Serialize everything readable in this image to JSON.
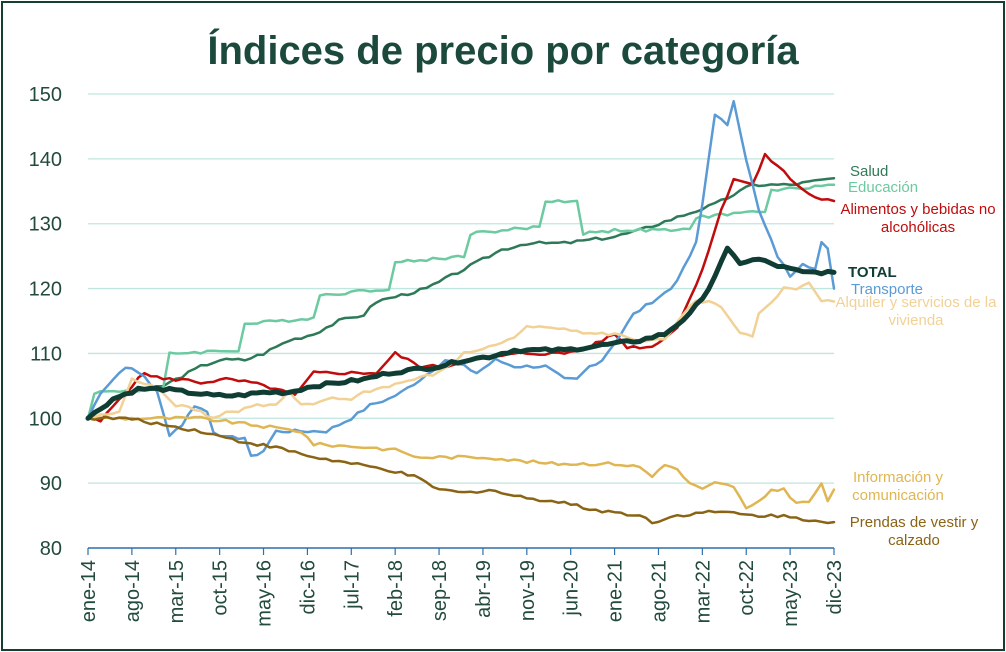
{
  "chart_data": {
    "type": "line",
    "title": "Índices de precio por categoría",
    "xlabel": "",
    "ylabel": "",
    "ylim": [
      80,
      150
    ],
    "yticks": [
      80,
      90,
      100,
      110,
      120,
      130,
      140,
      150
    ],
    "grid": true,
    "x_tick_labels": [
      "ene-14",
      "ago-14",
      "mar-15",
      "oct-15",
      "may-16",
      "dic-16",
      "jul-17",
      "feb-18",
      "sep-18",
      "abr-19",
      "nov-19",
      "jun-20",
      "ene-21",
      "ago-21",
      "mar-22",
      "oct-22",
      "may-23",
      "dic-23"
    ],
    "x_tick_index": [
      0,
      7,
      14,
      21,
      28,
      35,
      42,
      49,
      56,
      63,
      70,
      77,
      84,
      91,
      98,
      105,
      112,
      119
    ],
    "n_periods": 120,
    "series": [
      {
        "name": "Salud",
        "label_lines": [
          "Salud"
        ],
        "color": "#2e7a58",
        "width": 2.5,
        "knots": [
          [
            0,
            100
          ],
          [
            6,
            104
          ],
          [
            12,
            105
          ],
          [
            18,
            108
          ],
          [
            21,
            109
          ],
          [
            25,
            109
          ],
          [
            28,
            110
          ],
          [
            32,
            112
          ],
          [
            36,
            113
          ],
          [
            40,
            115
          ],
          [
            44,
            116
          ],
          [
            46,
            118
          ],
          [
            50,
            119
          ],
          [
            54,
            120
          ],
          [
            58,
            122
          ],
          [
            62,
            124
          ],
          [
            66,
            126
          ],
          [
            70,
            127
          ],
          [
            76,
            127
          ],
          [
            84,
            128
          ],
          [
            88,
            129
          ],
          [
            94,
            131
          ],
          [
            100,
            133
          ],
          [
            106,
            136
          ],
          [
            112,
            136
          ],
          [
            119,
            137
          ]
        ]
      },
      {
        "name": "Educación",
        "label_lines": [
          "Educación"
        ],
        "color": "#6ccaa0",
        "width": 2.5,
        "knots": [
          [
            0,
            100
          ],
          [
            1,
            104
          ],
          [
            12,
            104.5
          ],
          [
            13,
            110
          ],
          [
            24,
            110.5
          ],
          [
            25,
            114.5
          ],
          [
            36,
            115.5
          ],
          [
            37,
            119
          ],
          [
            48,
            120
          ],
          [
            49,
            124
          ],
          [
            60,
            125
          ],
          [
            61,
            128.5
          ],
          [
            72,
            129.5
          ],
          [
            73,
            133.5
          ],
          [
            78,
            133.5
          ],
          [
            79,
            128.5
          ],
          [
            84,
            129
          ],
          [
            96,
            129
          ],
          [
            97,
            131
          ],
          [
            108,
            132
          ],
          [
            109,
            135
          ],
          [
            113,
            135.5
          ],
          [
            119,
            136
          ]
        ]
      },
      {
        "name": "Alimentos y bebidas no alcohólicas",
        "label_lines": [
          "Alimentos y bebidas no",
          "alcohólicas"
        ],
        "color": "#c00c0c",
        "width": 2.5,
        "knots": [
          [
            0,
            100
          ],
          [
            2,
            99.5
          ],
          [
            5,
            103
          ],
          [
            9,
            107
          ],
          [
            12,
            106
          ],
          [
            15,
            106
          ],
          [
            18,
            105.5
          ],
          [
            22,
            106
          ],
          [
            26,
            105.5
          ],
          [
            30,
            104.5
          ],
          [
            33,
            103.5
          ],
          [
            36,
            107
          ],
          [
            40,
            107
          ],
          [
            43,
            107
          ],
          [
            46,
            107
          ],
          [
            49,
            110
          ],
          [
            53,
            108
          ],
          [
            57,
            108
          ],
          [
            61,
            109
          ],
          [
            65,
            109.5
          ],
          [
            69,
            110
          ],
          [
            73,
            110
          ],
          [
            76,
            110
          ],
          [
            80,
            111
          ],
          [
            84,
            113
          ],
          [
            86,
            111
          ],
          [
            90,
            111
          ],
          [
            94,
            114
          ],
          [
            98,
            123
          ],
          [
            101,
            132
          ],
          [
            103,
            137
          ],
          [
            106,
            136
          ],
          [
            108,
            140.5
          ],
          [
            110,
            139
          ],
          [
            113,
            136
          ],
          [
            116,
            134
          ],
          [
            119,
            133.5
          ]
        ]
      },
      {
        "name": "TOTAL",
        "label_lines": [
          "TOTAL"
        ],
        "color": "#0f3d33",
        "width": 5,
        "bold": true,
        "knots": [
          [
            0,
            100
          ],
          [
            4,
            103
          ],
          [
            8,
            104.5
          ],
          [
            12,
            104.5
          ],
          [
            16,
            104
          ],
          [
            20,
            103.5
          ],
          [
            24,
            103.5
          ],
          [
            28,
            104
          ],
          [
            32,
            104
          ],
          [
            36,
            105
          ],
          [
            40,
            105.5
          ],
          [
            44,
            106
          ],
          [
            48,
            107
          ],
          [
            52,
            107.5
          ],
          [
            56,
            108
          ],
          [
            60,
            109
          ],
          [
            64,
            109.5
          ],
          [
            68,
            110.5
          ],
          [
            72,
            110.5
          ],
          [
            76,
            110.5
          ],
          [
            80,
            111
          ],
          [
            84,
            111.5
          ],
          [
            88,
            112
          ],
          [
            92,
            113
          ],
          [
            96,
            116
          ],
          [
            99,
            120
          ],
          [
            102,
            126
          ],
          [
            104,
            124
          ],
          [
            107,
            124.5
          ],
          [
            110,
            123.5
          ],
          [
            114,
            122.5
          ],
          [
            119,
            122.5
          ]
        ]
      },
      {
        "name": "Transporte",
        "label_lines": [
          "Transporte"
        ],
        "color": "#5b9bd5",
        "width": 2.5,
        "knots": [
          [
            0,
            100
          ],
          [
            2,
            104
          ],
          [
            4,
            106
          ],
          [
            6,
            108
          ],
          [
            9,
            106.5
          ],
          [
            11,
            104
          ],
          [
            13,
            97.5
          ],
          [
            15,
            99
          ],
          [
            17,
            102
          ],
          [
            19,
            101
          ],
          [
            20,
            98
          ],
          [
            22,
            97
          ],
          [
            25,
            97
          ],
          [
            26,
            94
          ],
          [
            28,
            95
          ],
          [
            30,
            98
          ],
          [
            33,
            98
          ],
          [
            36,
            98
          ],
          [
            38,
            98
          ],
          [
            40,
            99
          ],
          [
            42,
            100
          ],
          [
            45,
            102
          ],
          [
            48,
            103
          ],
          [
            50,
            104
          ],
          [
            53,
            106
          ],
          [
            57,
            109
          ],
          [
            60,
            108
          ],
          [
            62,
            107
          ],
          [
            65,
            109
          ],
          [
            68,
            108
          ],
          [
            71,
            108
          ],
          [
            73,
            108
          ],
          [
            76,
            106
          ],
          [
            78,
            106
          ],
          [
            80,
            108
          ],
          [
            82,
            109
          ],
          [
            85,
            113
          ],
          [
            87,
            116
          ],
          [
            90,
            118
          ],
          [
            93,
            120
          ],
          [
            95,
            123
          ],
          [
            97,
            127
          ],
          [
            98,
            133
          ],
          [
            100,
            147
          ],
          [
            102,
            145
          ],
          [
            103,
            149
          ],
          [
            105,
            140
          ],
          [
            107,
            132
          ],
          [
            110,
            125
          ],
          [
            112,
            122
          ],
          [
            114,
            124
          ],
          [
            116,
            123
          ],
          [
            117,
            127
          ],
          [
            118,
            126
          ],
          [
            119,
            120
          ]
        ]
      },
      {
        "name": "Alquiler y servicios de la vivienda",
        "label_lines": [
          "Alquiler y servicios de la",
          "vivienda"
        ],
        "color": "#f2d196",
        "width": 2.5,
        "knots": [
          [
            0,
            100
          ],
          [
            5,
            101
          ],
          [
            7,
            106
          ],
          [
            10,
            105
          ],
          [
            12,
            104
          ],
          [
            14,
            102
          ],
          [
            16,
            102
          ],
          [
            18,
            101
          ],
          [
            20,
            100
          ],
          [
            22,
            101
          ],
          [
            24,
            101
          ],
          [
            26,
            102
          ],
          [
            30,
            102
          ],
          [
            32,
            104
          ],
          [
            34,
            102
          ],
          [
            36,
            102
          ],
          [
            38,
            103
          ],
          [
            42,
            103
          ],
          [
            44,
            104
          ],
          [
            48,
            105
          ],
          [
            52,
            106
          ],
          [
            56,
            107
          ],
          [
            60,
            110
          ],
          [
            64,
            111
          ],
          [
            67,
            112
          ],
          [
            70,
            114
          ],
          [
            76,
            114
          ],
          [
            80,
            113
          ],
          [
            84,
            113
          ],
          [
            88,
            112
          ],
          [
            92,
            112
          ],
          [
            95,
            116
          ],
          [
            97,
            118
          ],
          [
            99,
            118
          ],
          [
            101,
            117
          ],
          [
            104,
            113
          ],
          [
            106,
            112.5
          ],
          [
            107,
            116
          ],
          [
            109,
            118
          ],
          [
            111,
            120
          ],
          [
            113,
            120
          ],
          [
            115,
            121
          ],
          [
            117,
            118
          ],
          [
            119,
            118
          ]
        ]
      },
      {
        "name": "Información y comunicación",
        "label_lines": [
          "Información y",
          "comunicación"
        ],
        "color": "#e0b652",
        "width": 2.5,
        "knots": [
          [
            0,
            100
          ],
          [
            6,
            100
          ],
          [
            18,
            100
          ],
          [
            26,
            99
          ],
          [
            34,
            98
          ],
          [
            36,
            96
          ],
          [
            45,
            95.5
          ],
          [
            50,
            95
          ],
          [
            52,
            94
          ],
          [
            57,
            94
          ],
          [
            64,
            94
          ],
          [
            68,
            93.5
          ],
          [
            74,
            93
          ],
          [
            80,
            93
          ],
          [
            84,
            93
          ],
          [
            88,
            92.5
          ],
          [
            90,
            91
          ],
          [
            92,
            93
          ],
          [
            94,
            92
          ],
          [
            96,
            90
          ],
          [
            98,
            89
          ],
          [
            100,
            90
          ],
          [
            103,
            89.5
          ],
          [
            105,
            86
          ],
          [
            107,
            87
          ],
          [
            109,
            89
          ],
          [
            111,
            89
          ],
          [
            113,
            87
          ],
          [
            115,
            87
          ],
          [
            117,
            90
          ],
          [
            118,
            87
          ],
          [
            119,
            89
          ]
        ]
      },
      {
        "name": "Prendas de vestir y calzado",
        "label_lines": [
          "Prendas de vestir y",
          "calzado"
        ],
        "color": "#8a6414",
        "width": 2.5,
        "knots": [
          [
            0,
            100
          ],
          [
            6,
            100
          ],
          [
            12,
            99
          ],
          [
            18,
            98
          ],
          [
            24,
            96.5
          ],
          [
            30,
            95.5
          ],
          [
            36,
            94
          ],
          [
            42,
            93
          ],
          [
            48,
            92
          ],
          [
            52,
            91
          ],
          [
            56,
            89
          ],
          [
            60,
            88.5
          ],
          [
            64,
            89
          ],
          [
            68,
            88
          ],
          [
            72,
            87.5
          ],
          [
            76,
            87
          ],
          [
            80,
            86
          ],
          [
            84,
            85.5
          ],
          [
            88,
            85
          ],
          [
            90,
            84
          ],
          [
            92,
            84.5
          ],
          [
            94,
            85
          ],
          [
            98,
            85.5
          ],
          [
            102,
            85.5
          ],
          [
            106,
            85
          ],
          [
            110,
            85
          ],
          [
            114,
            84.5
          ],
          [
            119,
            84
          ]
        ]
      }
    ]
  }
}
